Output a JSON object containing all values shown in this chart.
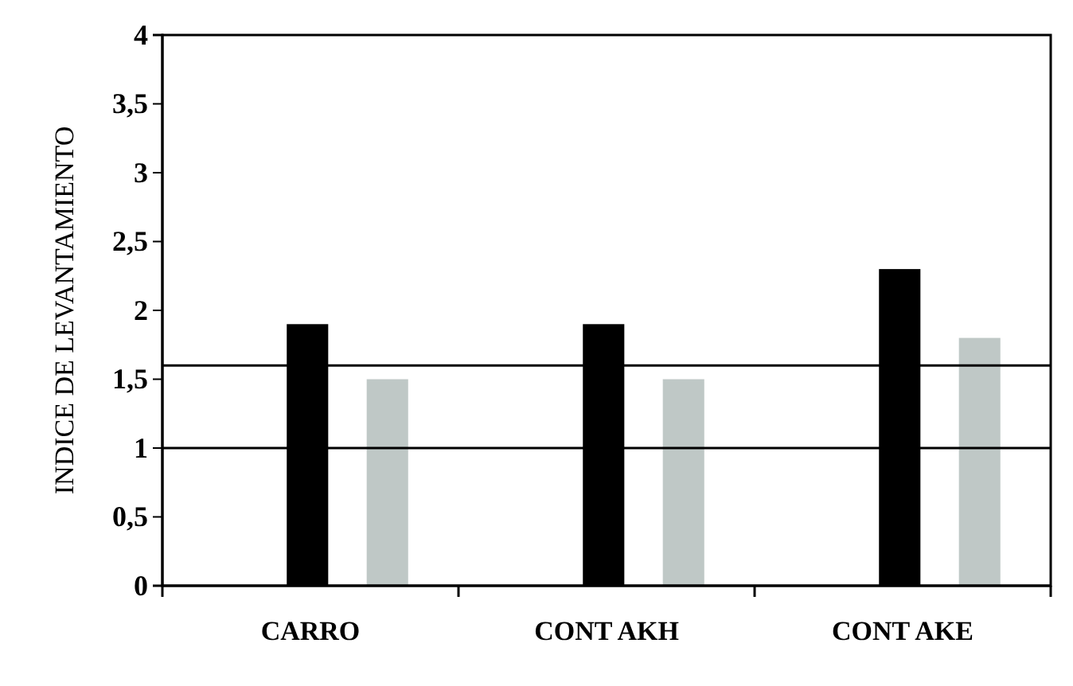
{
  "chart_data": {
    "type": "bar",
    "ylabel": "INDICE DE LEVANTAMIENTO",
    "categories": [
      "CARRO",
      "CONT AKH",
      "CONT AKE"
    ],
    "series": [
      {
        "color": "#000000",
        "values": [
          1.9,
          1.9,
          2.3
        ]
      },
      {
        "color": "#bfc8c6",
        "values": [
          1.5,
          1.5,
          1.8
        ]
      }
    ],
    "ylim": [
      0,
      4
    ],
    "yticks": [
      0,
      {
        "value": 0.5,
        "label": "0,5"
      },
      1,
      {
        "value": 1.5,
        "label": "1,5"
      },
      2,
      {
        "value": 2.5,
        "label": "2,5"
      },
      3,
      {
        "value": 3.5,
        "label": "3,5"
      },
      4
    ],
    "ref_lines": [
      {
        "axis": "y",
        "value": 1,
        "color": "#000000"
      },
      {
        "axis": "y",
        "value": 1.6,
        "color": "#000000"
      }
    ],
    "grid": false
  }
}
